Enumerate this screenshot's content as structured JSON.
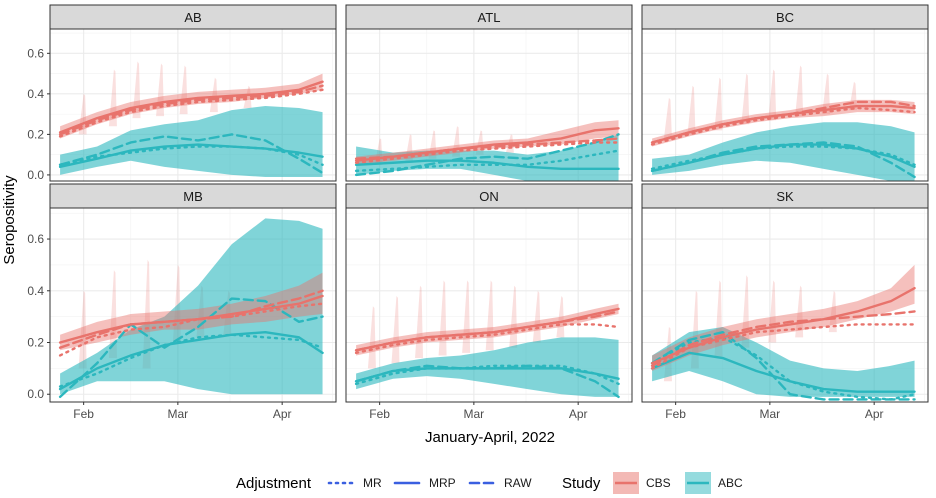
{
  "chart_data": {
    "type": "line",
    "title": "",
    "xlabel": "January-April, 2022",
    "ylabel": "Seropositivity",
    "x_range_days": [
      "2022-01-22",
      "2022-04-17"
    ],
    "x_ticks": [
      {
        "date": "2022-02-01",
        "label": "Feb"
      },
      {
        "date": "2022-03-01",
        "label": "Mar"
      },
      {
        "date": "2022-04-01",
        "label": "Apr"
      }
    ],
    "y_ticks": [
      {
        "v": 0,
        "label": "0.0"
      },
      {
        "v": 0.2,
        "label": "0.2"
      },
      {
        "v": 0.4,
        "label": "0.4"
      },
      {
        "v": 0.6,
        "label": "0.6"
      }
    ],
    "rows": [
      {
        "ylim": [
          -0.03,
          0.72
        ],
        "panels": [
          "AB",
          "ATL",
          "BC"
        ]
      },
      {
        "ylim": [
          -0.03,
          0.72
        ],
        "panels": [
          "MB",
          "ON",
          "SK"
        ]
      }
    ],
    "grid": true,
    "x_dates": [
      "2022-01-25",
      "2022-02-05",
      "2022-02-15",
      "2022-02-25",
      "2022-03-07",
      "2022-03-17",
      "2022-03-27",
      "2022-04-06",
      "2022-04-13"
    ],
    "legend": {
      "adjustment_title": "Adjustment",
      "adjustment_items": [
        {
          "label": "MR",
          "dash": "dotted"
        },
        {
          "label": "MRP",
          "dash": "solid"
        },
        {
          "label": "RAW",
          "dash": "dashed"
        }
      ],
      "study_title": "Study",
      "study_items": [
        {
          "label": "CBS",
          "color": "#E8736C"
        },
        {
          "label": "ABC",
          "color": "#2CB7BE"
        }
      ]
    },
    "colors": {
      "CBS": "#E8736C",
      "ABC": "#2CB7BE",
      "strip_bg": "#D9D9D9",
      "legend_line": "#3A5FE0"
    },
    "panels": {
      "AB": {
        "CBS": {
          "MRP": [
            0.21,
            0.28,
            0.33,
            0.36,
            0.38,
            0.39,
            0.4,
            0.42,
            0.46
          ],
          "lower": [
            0.18,
            0.25,
            0.3,
            0.33,
            0.35,
            0.36,
            0.38,
            0.4,
            0.42
          ],
          "upper": [
            0.24,
            0.31,
            0.36,
            0.39,
            0.41,
            0.42,
            0.43,
            0.45,
            0.5
          ],
          "MR": [
            0.19,
            0.26,
            0.31,
            0.34,
            0.36,
            0.37,
            0.38,
            0.4,
            0.42
          ],
          "RAW": [
            0.2,
            0.27,
            0.32,
            0.35,
            0.37,
            0.38,
            0.39,
            0.41,
            0.44
          ]
        },
        "ABC": {
          "MRP": [
            0.04,
            0.08,
            0.12,
            0.14,
            0.15,
            0.14,
            0.13,
            0.11,
            0.09
          ],
          "lower": [
            0.0,
            0.04,
            0.07,
            0.04,
            0.02,
            0.0,
            -0.01,
            -0.01,
            -0.01
          ],
          "upper": [
            0.1,
            0.14,
            0.22,
            0.25,
            0.27,
            0.32,
            0.34,
            0.33,
            0.31
          ],
          "MR": [
            0.05,
            0.09,
            0.11,
            0.13,
            0.14,
            0.14,
            0.13,
            0.1,
            0.05
          ],
          "RAW": [
            0.05,
            0.1,
            0.16,
            0.19,
            0.17,
            0.2,
            0.17,
            0.08,
            0.01
          ]
        },
        "spikes": [
          {
            "d": "2022-02-01",
            "lo": 0.2,
            "hi": 0.4
          },
          {
            "d": "2022-02-10",
            "lo": 0.24,
            "hi": 0.52
          },
          {
            "d": "2022-02-17",
            "lo": 0.28,
            "hi": 0.56
          },
          {
            "d": "2022-02-24",
            "lo": 0.29,
            "hi": 0.55
          },
          {
            "d": "2022-03-03",
            "lo": 0.3,
            "hi": 0.54
          },
          {
            "d": "2022-03-12",
            "lo": 0.31,
            "hi": 0.48
          },
          {
            "d": "2022-03-22",
            "lo": 0.33,
            "hi": 0.44
          }
        ]
      },
      "ATL": {
        "CBS": {
          "MRP": [
            0.07,
            0.09,
            0.11,
            0.13,
            0.15,
            0.16,
            0.18,
            0.22,
            0.23
          ],
          "lower": [
            0.05,
            0.07,
            0.09,
            0.11,
            0.13,
            0.14,
            0.15,
            0.18,
            0.19
          ],
          "upper": [
            0.09,
            0.11,
            0.13,
            0.15,
            0.17,
            0.18,
            0.22,
            0.26,
            0.27
          ],
          "MR": [
            0.06,
            0.08,
            0.1,
            0.12,
            0.13,
            0.14,
            0.15,
            0.16,
            0.16
          ],
          "RAW": [
            0.08,
            0.09,
            0.11,
            0.13,
            0.14,
            0.15,
            0.16,
            0.17,
            0.18
          ]
        },
        "ABC": {
          "MRP": [
            0.05,
            0.06,
            0.07,
            0.07,
            0.06,
            0.04,
            0.03,
            0.03,
            0.03
          ],
          "lower": [
            0.0,
            0.02,
            0.03,
            0.03,
            0.0,
            -0.03,
            -0.03,
            -0.03,
            -0.03
          ],
          "upper": [
            0.14,
            0.11,
            0.12,
            0.12,
            0.12,
            0.1,
            0.12,
            0.16,
            0.2
          ],
          "MR": [
            0.02,
            0.03,
            0.04,
            0.05,
            0.05,
            0.05,
            0.07,
            0.1,
            0.12
          ],
          "RAW": [
            0.0,
            0.02,
            0.05,
            0.08,
            0.09,
            0.08,
            0.12,
            0.16,
            0.2
          ]
        },
        "spikes": [
          {
            "d": "2022-02-01",
            "lo": 0.05,
            "hi": 0.18
          },
          {
            "d": "2022-02-10",
            "lo": 0.06,
            "hi": 0.2
          },
          {
            "d": "2022-02-17",
            "lo": 0.08,
            "hi": 0.22
          },
          {
            "d": "2022-02-24",
            "lo": 0.09,
            "hi": 0.24
          },
          {
            "d": "2022-03-03",
            "lo": 0.1,
            "hi": 0.22
          },
          {
            "d": "2022-03-12",
            "lo": 0.11,
            "hi": 0.2
          }
        ]
      },
      "BC": {
        "CBS": {
          "MRP": [
            0.16,
            0.21,
            0.25,
            0.28,
            0.3,
            0.32,
            0.34,
            0.34,
            0.33
          ],
          "lower": [
            0.14,
            0.19,
            0.23,
            0.26,
            0.28,
            0.29,
            0.31,
            0.31,
            0.3
          ],
          "upper": [
            0.18,
            0.23,
            0.27,
            0.3,
            0.32,
            0.35,
            0.37,
            0.37,
            0.36
          ],
          "MR": [
            0.15,
            0.2,
            0.24,
            0.27,
            0.29,
            0.31,
            0.33,
            0.32,
            0.31
          ],
          "RAW": [
            0.16,
            0.21,
            0.25,
            0.28,
            0.3,
            0.33,
            0.36,
            0.36,
            0.34
          ]
        },
        "ABC": {
          "MRP": [
            0.02,
            0.06,
            0.1,
            0.13,
            0.15,
            0.15,
            0.13,
            0.09,
            0.04
          ],
          "lower": [
            0.0,
            0.02,
            0.05,
            0.07,
            0.06,
            0.03,
            0.0,
            -0.03,
            -0.03
          ],
          "upper": [
            0.08,
            0.1,
            0.16,
            0.21,
            0.24,
            0.26,
            0.26,
            0.24,
            0.21
          ],
          "MR": [
            0.03,
            0.07,
            0.1,
            0.13,
            0.14,
            0.14,
            0.13,
            0.1,
            0.05
          ],
          "RAW": [
            0.02,
            0.06,
            0.11,
            0.14,
            0.15,
            0.16,
            0.14,
            0.06,
            -0.01
          ]
        },
        "spikes": [
          {
            "d": "2022-01-30",
            "lo": 0.18,
            "hi": 0.38
          },
          {
            "d": "2022-02-06",
            "lo": 0.2,
            "hi": 0.44
          },
          {
            "d": "2022-02-14",
            "lo": 0.22,
            "hi": 0.48
          },
          {
            "d": "2022-02-22",
            "lo": 0.25,
            "hi": 0.5
          },
          {
            "d": "2022-03-02",
            "lo": 0.27,
            "hi": 0.52
          },
          {
            "d": "2022-03-10",
            "lo": 0.29,
            "hi": 0.54
          },
          {
            "d": "2022-03-18",
            "lo": 0.3,
            "hi": 0.5
          },
          {
            "d": "2022-03-26",
            "lo": 0.32,
            "hi": 0.46
          }
        ]
      },
      "MB": {
        "CBS": {
          "MRP": [
            0.2,
            0.24,
            0.27,
            0.28,
            0.29,
            0.31,
            0.33,
            0.35,
            0.38
          ],
          "lower": [
            0.17,
            0.2,
            0.23,
            0.25,
            0.25,
            0.27,
            0.28,
            0.3,
            0.31
          ],
          "upper": [
            0.23,
            0.28,
            0.31,
            0.32,
            0.33,
            0.35,
            0.38,
            0.42,
            0.47
          ],
          "MR": [
            0.15,
            0.22,
            0.25,
            0.26,
            0.29,
            0.3,
            0.32,
            0.34,
            0.35
          ],
          "RAW": [
            0.18,
            0.23,
            0.27,
            0.28,
            0.29,
            0.3,
            0.34,
            0.37,
            0.4
          ]
        },
        "ABC": {
          "MRP": [
            0.02,
            0.1,
            0.15,
            0.19,
            0.21,
            0.23,
            0.24,
            0.22,
            0.16
          ],
          "lower": [
            0.0,
            0.05,
            0.05,
            0.05,
            0.02,
            0.0,
            0.0,
            0.0,
            0.0
          ],
          "upper": [
            0.08,
            0.16,
            0.25,
            0.3,
            0.42,
            0.58,
            0.68,
            0.67,
            0.64
          ],
          "MR": [
            0.03,
            0.08,
            0.14,
            0.19,
            0.22,
            0.23,
            0.22,
            0.21,
            0.18
          ],
          "RAW": [
            -0.01,
            0.12,
            0.27,
            0.18,
            0.26,
            0.37,
            0.36,
            0.28,
            0.3
          ]
        },
        "spikes": [
          {
            "d": "2022-02-01",
            "lo": 0.1,
            "hi": 0.4
          },
          {
            "d": "2022-02-10",
            "lo": 0.14,
            "hi": 0.48
          },
          {
            "d": "2022-02-20",
            "lo": 0.1,
            "hi": 0.52
          },
          {
            "d": "2022-03-01",
            "lo": 0.2,
            "hi": 0.5
          },
          {
            "d": "2022-03-08",
            "lo": 0.22,
            "hi": 0.42
          },
          {
            "d": "2022-03-16",
            "lo": 0.23,
            "hi": 0.4
          }
        ]
      },
      "ON": {
        "CBS": {
          "MRP": [
            0.17,
            0.2,
            0.22,
            0.23,
            0.24,
            0.26,
            0.28,
            0.31,
            0.33
          ],
          "lower": [
            0.15,
            0.18,
            0.2,
            0.21,
            0.22,
            0.24,
            0.26,
            0.29,
            0.31
          ],
          "upper": [
            0.19,
            0.22,
            0.24,
            0.25,
            0.26,
            0.28,
            0.3,
            0.33,
            0.35
          ],
          "MR": [
            0.16,
            0.19,
            0.21,
            0.22,
            0.23,
            0.25,
            0.27,
            0.27,
            0.26
          ],
          "RAW": [
            0.17,
            0.2,
            0.22,
            0.23,
            0.24,
            0.26,
            0.28,
            0.3,
            0.32
          ]
        },
        "ABC": {
          "MRP": [
            0.05,
            0.09,
            0.1,
            0.1,
            0.1,
            0.1,
            0.1,
            0.08,
            0.06
          ],
          "lower": [
            0.02,
            0.06,
            0.07,
            0.06,
            0.04,
            0.02,
            0.0,
            -0.01,
            -0.01
          ],
          "upper": [
            0.08,
            0.12,
            0.14,
            0.15,
            0.17,
            0.2,
            0.22,
            0.22,
            0.21
          ],
          "MR": [
            0.04,
            0.08,
            0.1,
            0.1,
            0.11,
            0.11,
            0.11,
            0.08,
            0.04
          ],
          "RAW": [
            0.05,
            0.09,
            0.11,
            0.1,
            0.1,
            0.11,
            0.1,
            0.05,
            -0.01
          ]
        },
        "spikes": [
          {
            "d": "2022-01-30",
            "lo": 0.1,
            "hi": 0.34
          },
          {
            "d": "2022-02-06",
            "lo": 0.12,
            "hi": 0.38
          },
          {
            "d": "2022-02-13",
            "lo": 0.14,
            "hi": 0.42
          },
          {
            "d": "2022-02-20",
            "lo": 0.15,
            "hi": 0.44
          },
          {
            "d": "2022-02-27",
            "lo": 0.16,
            "hi": 0.44
          },
          {
            "d": "2022-03-06",
            "lo": 0.17,
            "hi": 0.44
          },
          {
            "d": "2022-03-13",
            "lo": 0.18,
            "hi": 0.42
          },
          {
            "d": "2022-03-20",
            "lo": 0.2,
            "hi": 0.4
          },
          {
            "d": "2022-03-27",
            "lo": 0.22,
            "hi": 0.38
          }
        ]
      },
      "SK": {
        "CBS": {
          "MRP": [
            0.12,
            0.18,
            0.22,
            0.25,
            0.27,
            0.29,
            0.32,
            0.36,
            0.41
          ],
          "lower": [
            0.09,
            0.15,
            0.19,
            0.22,
            0.24,
            0.26,
            0.29,
            0.32,
            0.35
          ],
          "upper": [
            0.15,
            0.22,
            0.26,
            0.29,
            0.31,
            0.33,
            0.36,
            0.41,
            0.5
          ],
          "MR": [
            0.1,
            0.18,
            0.21,
            0.24,
            0.25,
            0.26,
            0.27,
            0.27,
            0.27
          ],
          "RAW": [
            0.11,
            0.19,
            0.23,
            0.26,
            0.28,
            0.29,
            0.3,
            0.31,
            0.32
          ]
        },
        "ABC": {
          "MRP": [
            0.1,
            0.16,
            0.14,
            0.09,
            0.05,
            0.02,
            0.01,
            0.01,
            0.01
          ],
          "lower": [
            0.05,
            0.09,
            0.05,
            0.0,
            -0.01,
            -0.01,
            -0.01,
            -0.01,
            -0.01
          ],
          "upper": [
            0.15,
            0.24,
            0.26,
            0.2,
            0.13,
            0.1,
            0.09,
            0.11,
            0.13
          ],
          "MR": [
            0.12,
            0.2,
            0.22,
            0.15,
            0.05,
            0.01,
            -0.01,
            -0.02,
            0.0
          ],
          "RAW": [
            0.12,
            0.21,
            0.24,
            0.14,
            0.0,
            -0.02,
            -0.02,
            -0.02,
            -0.02
          ]
        },
        "spikes": [
          {
            "d": "2022-01-30",
            "lo": 0.05,
            "hi": 0.26
          },
          {
            "d": "2022-02-07",
            "lo": 0.1,
            "hi": 0.4
          },
          {
            "d": "2022-02-14",
            "lo": 0.14,
            "hi": 0.44
          },
          {
            "d": "2022-02-22",
            "lo": 0.18,
            "hi": 0.46
          },
          {
            "d": "2022-03-02",
            "lo": 0.2,
            "hi": 0.44
          },
          {
            "d": "2022-03-10",
            "lo": 0.22,
            "hi": 0.42
          },
          {
            "d": "2022-03-20",
            "lo": 0.24,
            "hi": 0.4
          }
        ]
      }
    }
  }
}
